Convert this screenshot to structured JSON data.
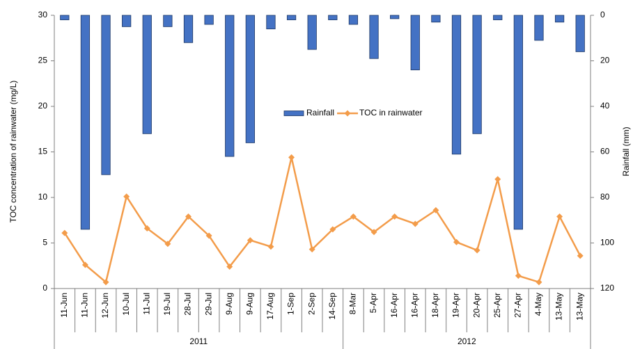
{
  "chart_data": {
    "type": "bar",
    "categories": [
      "11-Jun",
      "11-Jun",
      "12-Jun",
      "10-Jul",
      "11-Jul",
      "19-Jul",
      "28-Jul",
      "29-Jul",
      "9-Aug",
      "9-Aug",
      "17-Aug",
      "1-Sep",
      "2-Sep",
      "14-Sep",
      "8-Mar",
      "5-Apr",
      "16-Apr",
      "16-Apr",
      "18-Apr",
      "19-Apr",
      "20-Apr",
      "25-Apr",
      "27-Apr",
      "4-May",
      "13-May",
      "13-May"
    ],
    "groups": [
      {
        "label": "2011",
        "count": 14
      },
      {
        "label": "2012",
        "count": 12
      }
    ],
    "series": [
      {
        "name": "Rainfall",
        "type": "bar",
        "axis": "y2",
        "color": "#4472c4",
        "values": [
          2,
          94,
          70,
          5,
          52,
          5,
          12,
          4,
          62,
          56,
          6,
          2,
          15,
          2,
          4,
          19,
          1.5,
          24,
          3,
          61,
          52,
          2,
          94,
          11,
          3,
          16
        ]
      },
      {
        "name": "TOC in rainwater",
        "type": "line",
        "color": "#f39c4a",
        "values": [
          6.1,
          2.6,
          0.7,
          10.1,
          6.6,
          4.9,
          7.9,
          5.8,
          2.4,
          5.3,
          4.6,
          14.4,
          4.3,
          6.5,
          7.9,
          6.2,
          7.9,
          7.1,
          8.6,
          5.1,
          4.2,
          12.0,
          1.4,
          0.7,
          7.9,
          3.6
        ]
      }
    ],
    "ylabel": "TOC concentration of rainwater (mg/L)",
    "y2label": "Rainfall (mm)",
    "ylim": [
      0,
      30
    ],
    "yticks": [
      0,
      5,
      10,
      15,
      20,
      25,
      30
    ],
    "y2lim": [
      0,
      120
    ],
    "y2ticks": [
      0,
      20,
      40,
      60,
      80,
      100,
      120
    ],
    "y2_inverted": true,
    "legend": "center",
    "grid": false
  }
}
